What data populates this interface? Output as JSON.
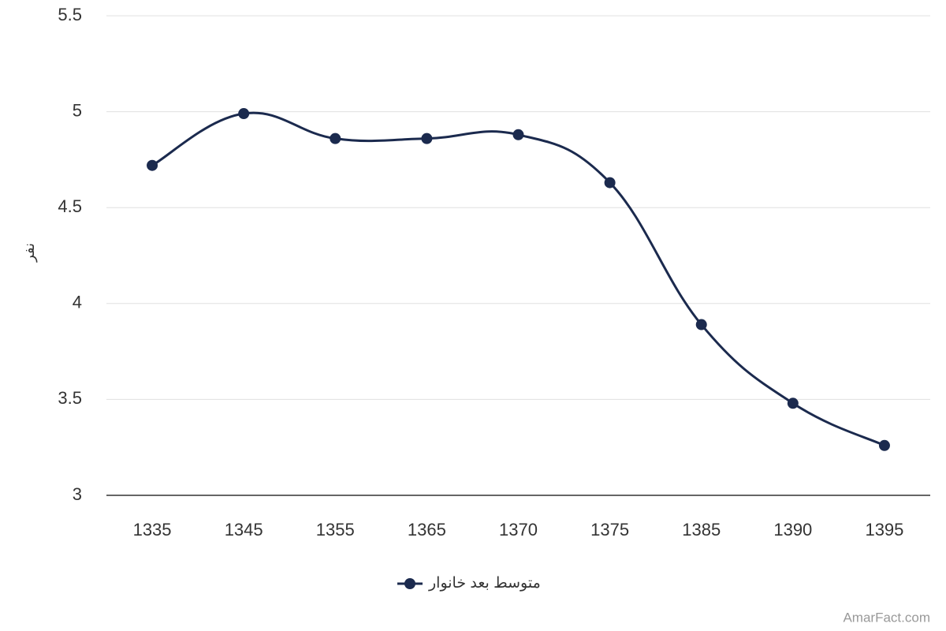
{
  "chart_data": {
    "type": "line",
    "y_label": "نفر",
    "categories": [
      "1335",
      "1345",
      "1355",
      "1365",
      "1370",
      "1375",
      "1385",
      "1390",
      "1395"
    ],
    "series": [
      {
        "name": "متوسط بعد خانوار",
        "color": "#1b2a4e",
        "values": [
          4.72,
          4.99,
          4.86,
          4.86,
          4.88,
          4.63,
          3.89,
          3.48,
          3.26
        ]
      }
    ],
    "ylim": [
      3,
      5.5
    ],
    "yticks": [
      3,
      3.5,
      4,
      4.5,
      5,
      5.5
    ],
    "grid": true,
    "legend": "bottom",
    "credits": "AmarFact.com"
  }
}
